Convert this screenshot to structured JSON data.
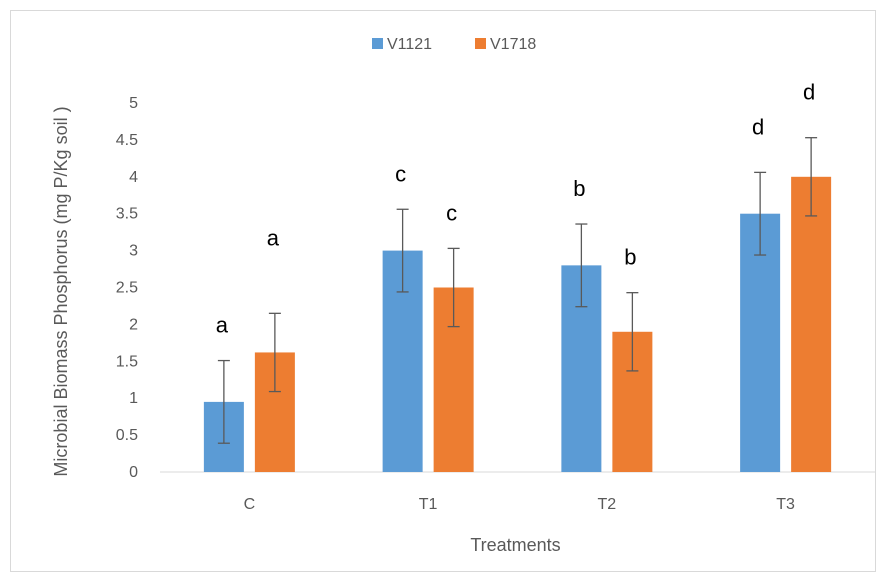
{
  "chart_data": {
    "type": "bar",
    "title": "",
    "xlabel": "Treatments",
    "ylabel": "Microbial Biomass Phosphorus (mg P/Kg soil )",
    "categories": [
      "C",
      "T1",
      "T2",
      "T3"
    ],
    "ylim": [
      0,
      5
    ],
    "yticks": [
      "0",
      "0.5",
      "1",
      "1.5",
      "2",
      "2.5",
      "3",
      "3.5",
      "4",
      "4.5",
      "5"
    ],
    "grid": false,
    "legend_position": "top",
    "series": [
      {
        "name": "V1121",
        "color": "#5b9bd5",
        "values": [
          0.95,
          3.0,
          2.8,
          3.5
        ],
        "errors": [
          0.56,
          0.56,
          0.56,
          0.56
        ],
        "letters": [
          "a",
          "c",
          "b",
          "d"
        ]
      },
      {
        "name": "V1718",
        "color": "#ed7d31",
        "values": [
          1.62,
          2.5,
          1.9,
          4.0
        ],
        "errors": [
          0.53,
          0.53,
          0.53,
          0.53
        ],
        "letters": [
          "a",
          "c",
          "b",
          "d"
        ]
      }
    ]
  }
}
